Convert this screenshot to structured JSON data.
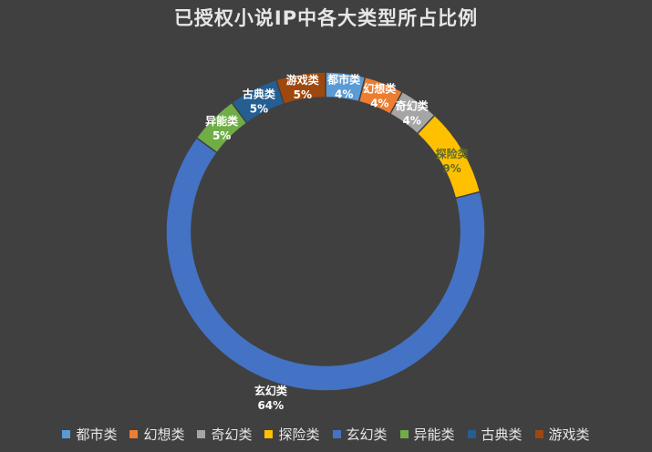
{
  "chart_data": {
    "type": "pie",
    "variant": "donut",
    "title": "已授权小说IP中各大类型所占比例",
    "legend_position": "bottom",
    "series": [
      {
        "name": "都市类",
        "value": 4,
        "label": "4%",
        "color": "#5b9bd5"
      },
      {
        "name": "幻想类",
        "value": 4,
        "label": "4%",
        "color": "#ed7d31"
      },
      {
        "name": "奇幻类",
        "value": 4,
        "label": "4%",
        "color": "#a5a5a5"
      },
      {
        "name": "探险类",
        "value": 9,
        "label": "9%",
        "color": "#ffc000"
      },
      {
        "name": "玄幻类",
        "value": 64,
        "label": "64%",
        "color": "#4472c4"
      },
      {
        "name": "异能类",
        "value": 5,
        "label": "5%",
        "color": "#70ad47"
      },
      {
        "name": "古典类",
        "value": 5,
        "label": "5%",
        "color": "#255e91"
      },
      {
        "name": "游戏类",
        "value": 5,
        "label": "5%",
        "color": "#9e480e"
      }
    ]
  }
}
